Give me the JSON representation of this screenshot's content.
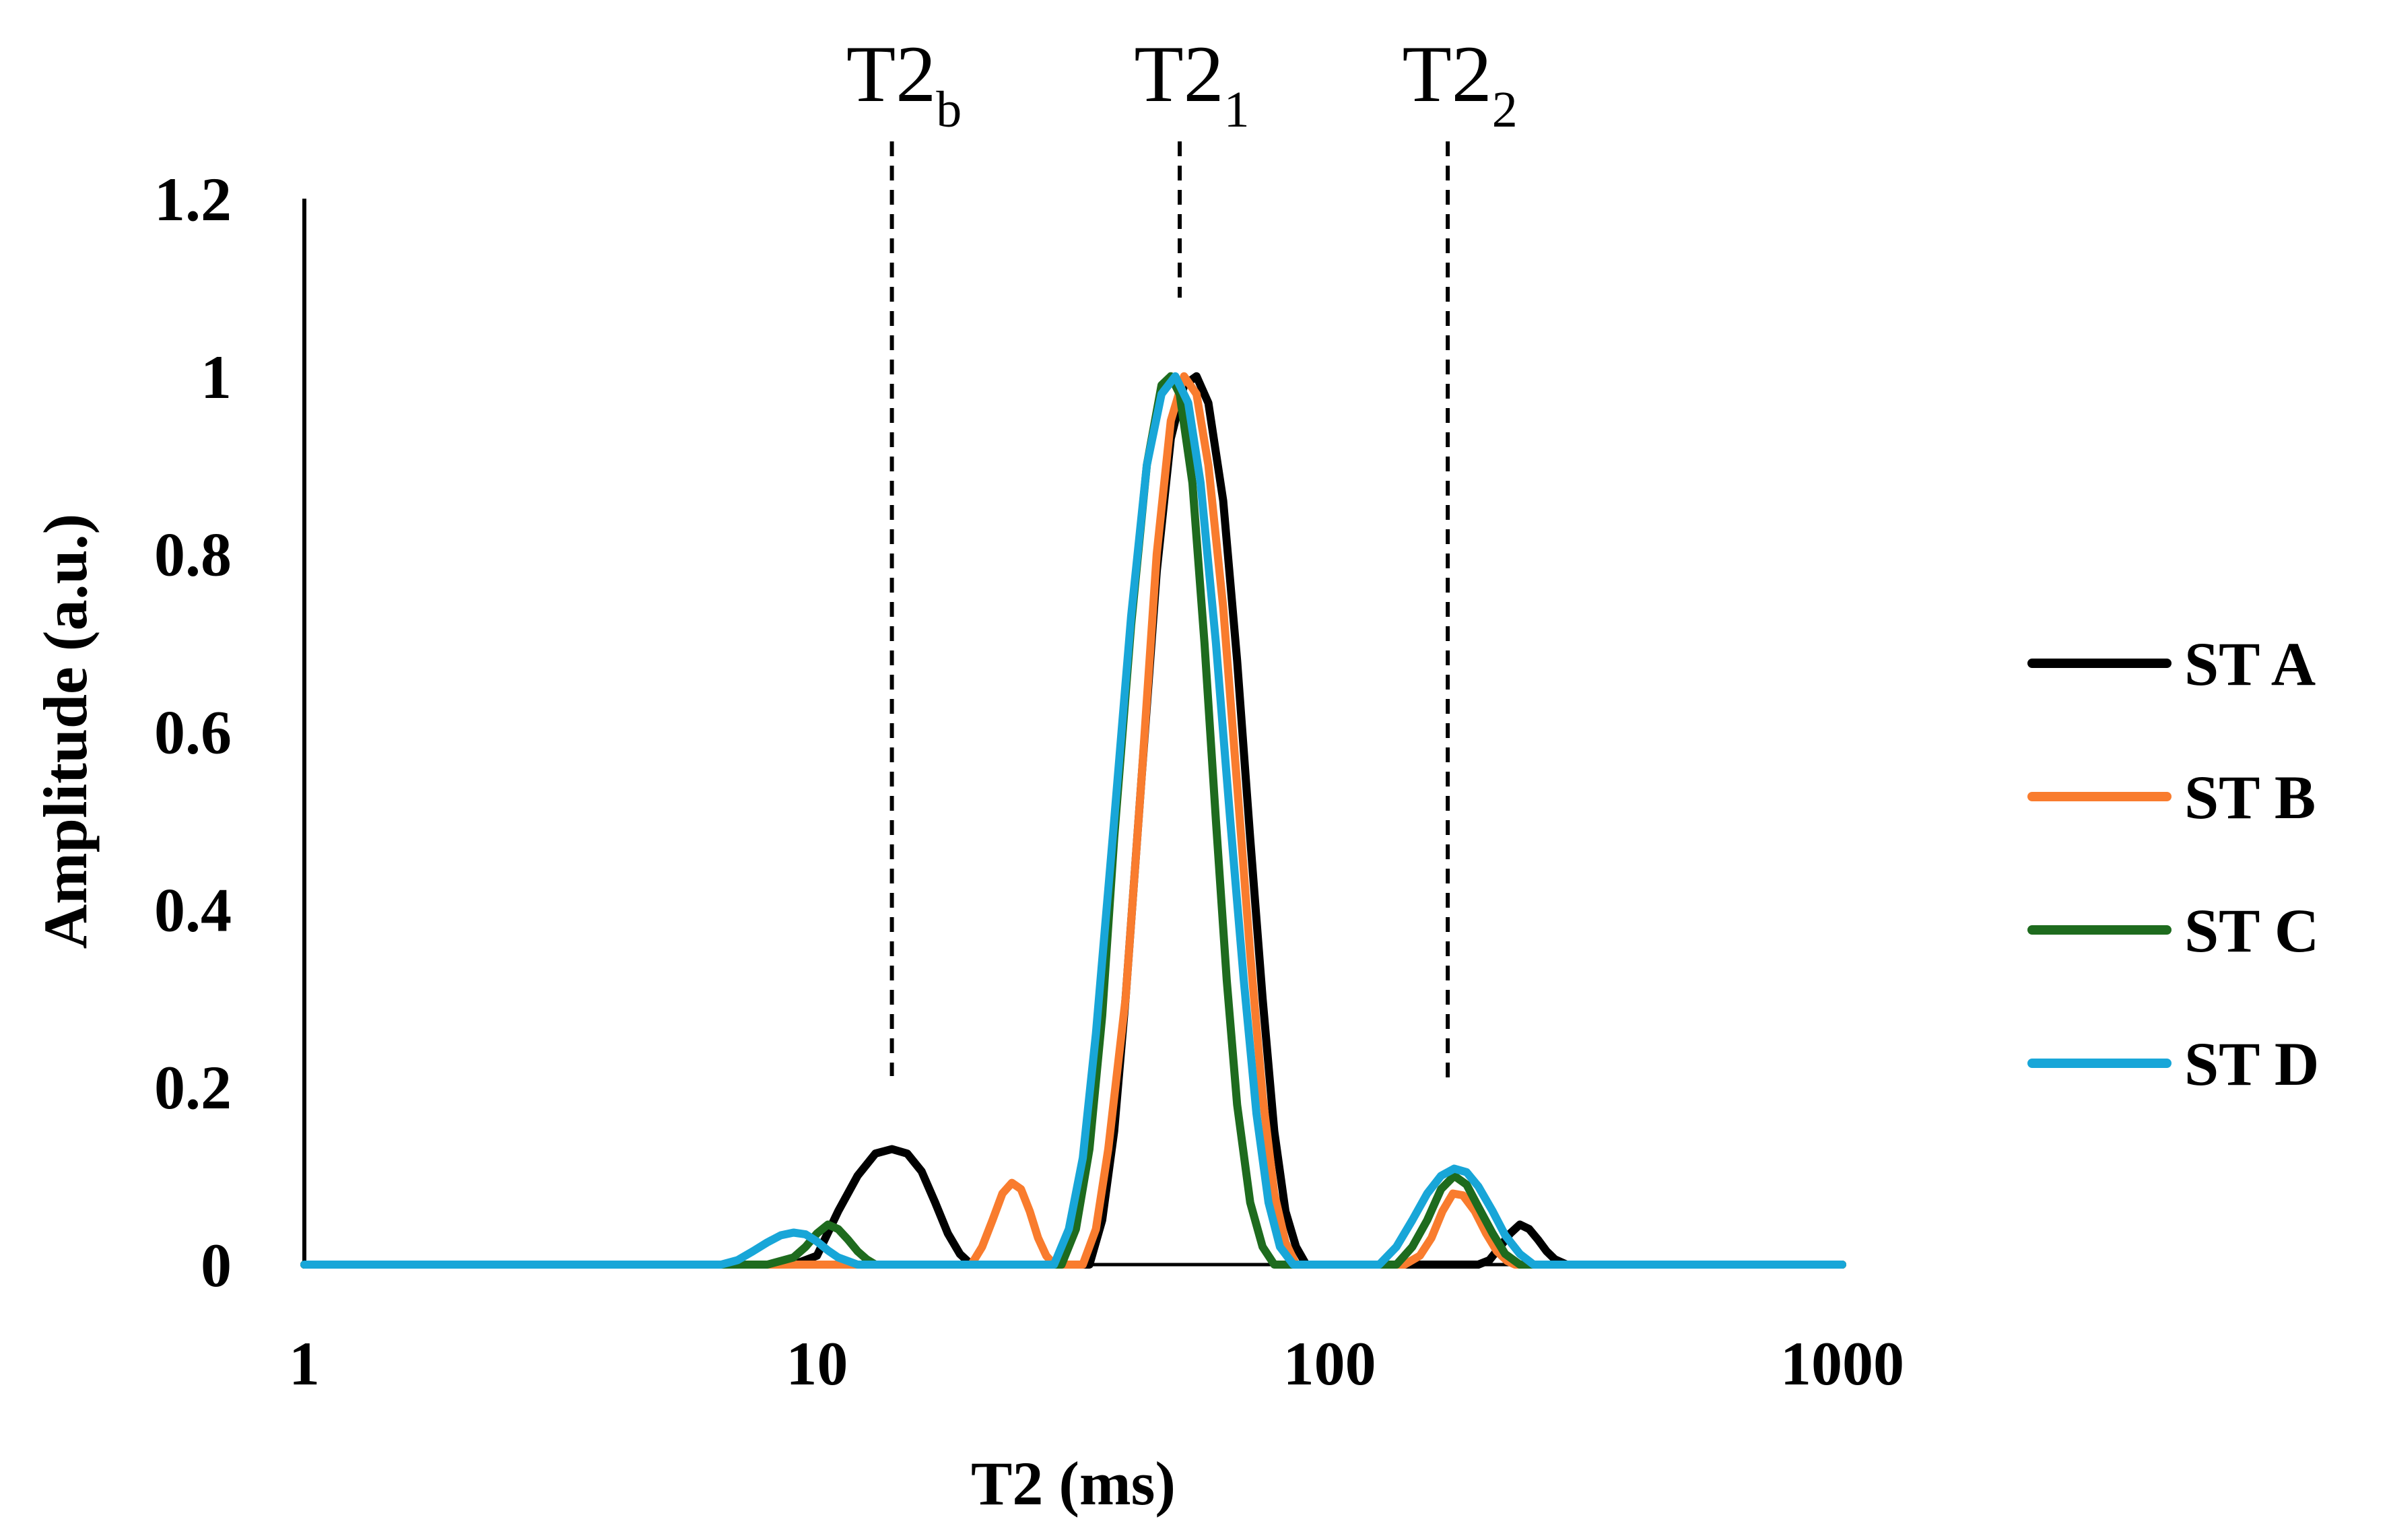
{
  "chart_data": {
    "type": "line",
    "title": "",
    "xlabel": "T2 (ms)",
    "ylabel": "Amplitude (a.u.)",
    "x_scale": "log",
    "xlim": [
      1,
      1000
    ],
    "ylim": [
      0,
      1.2
    ],
    "x_ticks": [
      1,
      10,
      100,
      1000
    ],
    "x_tick_labels": [
      "1",
      "10",
      "100",
      "1000"
    ],
    "y_ticks": [
      0,
      0.2,
      0.4,
      0.6,
      0.8,
      1.0,
      1.2
    ],
    "y_tick_labels": [
      "0",
      "0.2",
      "0.4",
      "0.6",
      "0.8",
      "1",
      "1.2"
    ],
    "grid": false,
    "legend_position": "right",
    "markers": [
      {
        "base": "T2",
        "sub": "b",
        "x": 14
      },
      {
        "base": "T2",
        "sub": "1",
        "x": 51
      },
      {
        "base": "T2",
        "sub": "2",
        "x": 170
      }
    ],
    "series": [
      {
        "name": "ST A",
        "color": "#000000",
        "points": [
          [
            1,
            0
          ],
          [
            9,
            0
          ],
          [
            10,
            0.01
          ],
          [
            11,
            0.06
          ],
          [
            12,
            0.1
          ],
          [
            13,
            0.125
          ],
          [
            14,
            0.13
          ],
          [
            15,
            0.125
          ],
          [
            16,
            0.105
          ],
          [
            17,
            0.07
          ],
          [
            18,
            0.035
          ],
          [
            19,
            0.012
          ],
          [
            20,
            0
          ],
          [
            34,
            0
          ],
          [
            36,
            0.05
          ],
          [
            38,
            0.15
          ],
          [
            40,
            0.3
          ],
          [
            43,
            0.55
          ],
          [
            46,
            0.78
          ],
          [
            49,
            0.93
          ],
          [
            52,
            0.99
          ],
          [
            55,
            1.0
          ],
          [
            58,
            0.97
          ],
          [
            62,
            0.86
          ],
          [
            66,
            0.68
          ],
          [
            70,
            0.48
          ],
          [
            74,
            0.3
          ],
          [
            78,
            0.15
          ],
          [
            82,
            0.06
          ],
          [
            86,
            0.02
          ],
          [
            90,
            0
          ],
          [
            195,
            0
          ],
          [
            205,
            0.005
          ],
          [
            215,
            0.02
          ],
          [
            225,
            0.035
          ],
          [
            235,
            0.045
          ],
          [
            245,
            0.04
          ],
          [
            255,
            0.028
          ],
          [
            265,
            0.015
          ],
          [
            275,
            0.006
          ],
          [
            290,
            0
          ],
          [
            1000,
            0
          ]
        ]
      },
      {
        "name": "ST B",
        "color": "#F97C2E",
        "points": [
          [
            1,
            0
          ],
          [
            20,
            0
          ],
          [
            21,
            0.02
          ],
          [
            22,
            0.05
          ],
          [
            23,
            0.08
          ],
          [
            24,
            0.092
          ],
          [
            25,
            0.085
          ],
          [
            26,
            0.06
          ],
          [
            27,
            0.03
          ],
          [
            28,
            0.01
          ],
          [
            29,
            0
          ],
          [
            33,
            0
          ],
          [
            35,
            0.04
          ],
          [
            37,
            0.13
          ],
          [
            40,
            0.3
          ],
          [
            43,
            0.55
          ],
          [
            46,
            0.8
          ],
          [
            49,
            0.95
          ],
          [
            52,
            1.0
          ],
          [
            55,
            0.98
          ],
          [
            58,
            0.9
          ],
          [
            62,
            0.74
          ],
          [
            66,
            0.54
          ],
          [
            70,
            0.35
          ],
          [
            74,
            0.19
          ],
          [
            78,
            0.08
          ],
          [
            82,
            0.025
          ],
          [
            86,
            0
          ],
          [
            140,
            0
          ],
          [
            150,
            0.01
          ],
          [
            158,
            0.03
          ],
          [
            166,
            0.06
          ],
          [
            174,
            0.08
          ],
          [
            182,
            0.078
          ],
          [
            192,
            0.06
          ],
          [
            202,
            0.035
          ],
          [
            212,
            0.015
          ],
          [
            222,
            0.004
          ],
          [
            230,
            0
          ],
          [
            1000,
            0
          ]
        ]
      },
      {
        "name": "ST C",
        "color": "#1E6B1E",
        "points": [
          [
            1,
            0
          ],
          [
            8,
            0
          ],
          [
            9,
            0.008
          ],
          [
            9.5,
            0.02
          ],
          [
            10,
            0.035
          ],
          [
            10.5,
            0.045
          ],
          [
            11,
            0.04
          ],
          [
            11.5,
            0.028
          ],
          [
            12,
            0.015
          ],
          [
            12.5,
            0.006
          ],
          [
            13,
            0
          ],
          [
            30,
            0
          ],
          [
            32,
            0.04
          ],
          [
            34,
            0.13
          ],
          [
            36,
            0.28
          ],
          [
            38,
            0.48
          ],
          [
            41,
            0.72
          ],
          [
            44,
            0.9
          ],
          [
            47,
            0.99
          ],
          [
            49,
            1.0
          ],
          [
            51,
            0.98
          ],
          [
            54,
            0.88
          ],
          [
            57,
            0.7
          ],
          [
            60,
            0.5
          ],
          [
            63,
            0.32
          ],
          [
            66,
            0.18
          ],
          [
            70,
            0.07
          ],
          [
            74,
            0.02
          ],
          [
            78,
            0
          ],
          [
            135,
            0
          ],
          [
            145,
            0.02
          ],
          [
            155,
            0.05
          ],
          [
            165,
            0.085
          ],
          [
            175,
            0.1
          ],
          [
            185,
            0.09
          ],
          [
            195,
            0.065
          ],
          [
            208,
            0.035
          ],
          [
            220,
            0.012
          ],
          [
            235,
            0
          ],
          [
            1000,
            0
          ]
        ]
      },
      {
        "name": "ST D",
        "color": "#18A6D8",
        "points": [
          [
            1,
            0
          ],
          [
            6.5,
            0
          ],
          [
            7,
            0.005
          ],
          [
            7.5,
            0.015
          ],
          [
            8,
            0.025
          ],
          [
            8.5,
            0.033
          ],
          [
            9,
            0.036
          ],
          [
            9.5,
            0.034
          ],
          [
            10,
            0.026
          ],
          [
            10.5,
            0.016
          ],
          [
            11,
            0.008
          ],
          [
            12,
            0
          ],
          [
            29,
            0
          ],
          [
            31,
            0.04
          ],
          [
            33,
            0.12
          ],
          [
            35,
            0.26
          ],
          [
            38,
            0.5
          ],
          [
            41,
            0.73
          ],
          [
            44,
            0.9
          ],
          [
            47,
            0.98
          ],
          [
            50,
            1.0
          ],
          [
            53,
            0.97
          ],
          [
            56,
            0.88
          ],
          [
            60,
            0.7
          ],
          [
            64,
            0.5
          ],
          [
            68,
            0.32
          ],
          [
            72,
            0.17
          ],
          [
            76,
            0.07
          ],
          [
            80,
            0.02
          ],
          [
            85,
            0
          ],
          [
            125,
            0
          ],
          [
            135,
            0.02
          ],
          [
            145,
            0.05
          ],
          [
            155,
            0.08
          ],
          [
            165,
            0.1
          ],
          [
            175,
            0.108
          ],
          [
            185,
            0.104
          ],
          [
            195,
            0.088
          ],
          [
            208,
            0.06
          ],
          [
            220,
            0.033
          ],
          [
            235,
            0.012
          ],
          [
            250,
            0
          ],
          [
            1000,
            0
          ]
        ]
      }
    ]
  }
}
